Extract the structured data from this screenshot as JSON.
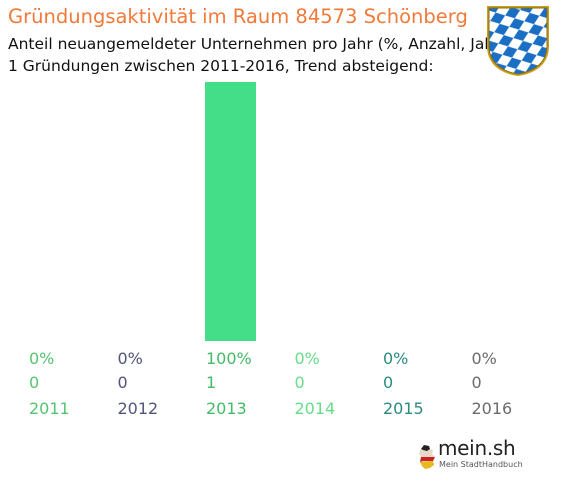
{
  "header": {
    "title": "Gründungsaktivität im Raum 84573 Schönberg",
    "subtitle_line1": "Anteil neuangemeldeter Unternehmen pro Jahr (%, Anzahl, Jahr)",
    "subtitle_line2": "1 Gründungen zwischen 2011-2016, Trend absteigend:",
    "title_color": "#f07a3a"
  },
  "crest": {
    "icon": "bavaria-crest-icon",
    "colors": [
      "#1a6fc4",
      "#ffffff"
    ]
  },
  "logo": {
    "text": "mein.sh",
    "tagline": "Mein StadtHandbuch",
    "icon": "germany-map-icon"
  },
  "chart_data": {
    "type": "bar",
    "categories": [
      "2011",
      "2012",
      "2013",
      "2014",
      "2015",
      "2016"
    ],
    "values": [
      0,
      0,
      1,
      0,
      0,
      0
    ],
    "percent_labels": [
      "0%",
      "0%",
      "100%",
      "0%",
      "0%",
      "0%"
    ],
    "count_labels": [
      "0",
      "0",
      "1",
      "0",
      "0",
      "0"
    ],
    "label_colors": [
      "#55c470",
      "#545478",
      "#44bb66",
      "#66dd88",
      "#2a8c80",
      "#6e6a6a"
    ],
    "bar_color": "#44dd88",
    "ylim": [
      0,
      1
    ],
    "grid": false,
    "legend": "none"
  }
}
